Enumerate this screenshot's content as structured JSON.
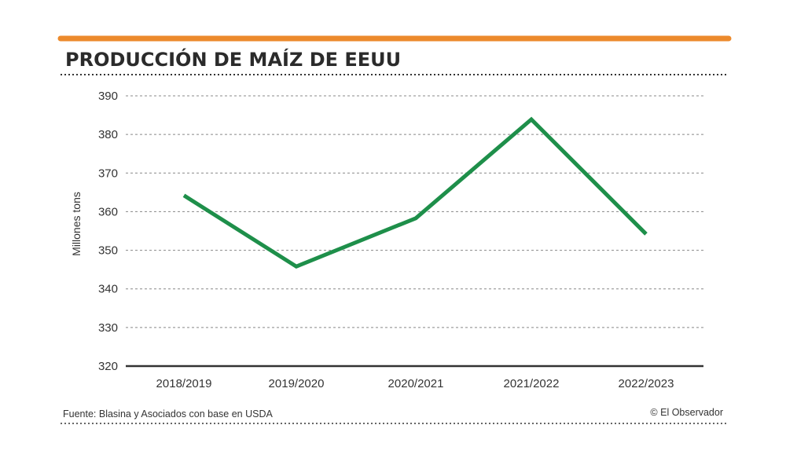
{
  "chart_data": {
    "type": "line",
    "title": "PRODUCCIÓN DE MAÍZ DE EEUU",
    "xlabel": "",
    "ylabel": "Millones tons",
    "categories": [
      "2018/2019",
      "2019/2020",
      "2020/2021",
      "2021/2022",
      "2022/2023"
    ],
    "series": [
      {
        "values": [
          364.2,
          345.8,
          358.3,
          383.9,
          354.2
        ],
        "color": "#1e8f4a"
      }
    ],
    "ylim": [
      320,
      390
    ],
    "yticks": [
      320,
      330,
      340,
      350,
      360,
      370,
      380,
      390
    ],
    "grid": true,
    "legend": "none"
  },
  "source": "Fuente: Blasina y Asociados con base en USDA",
  "credit": "© El Observador",
  "colors": {
    "accent_bar": "#ec8a2c",
    "line": "#1e8f4a",
    "text": "#2b2b2b"
  }
}
